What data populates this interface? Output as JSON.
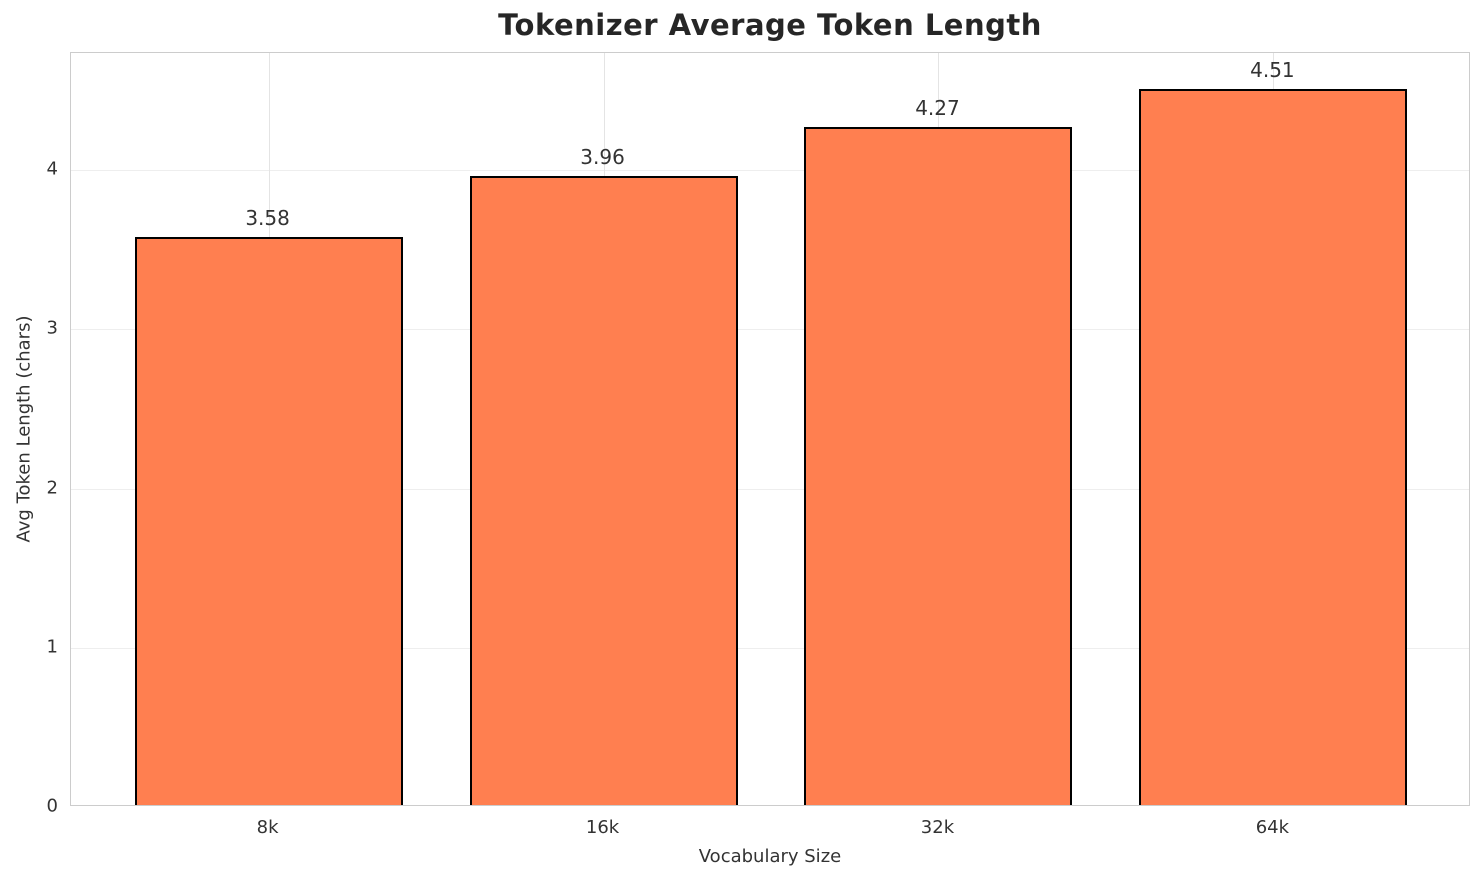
{
  "chart_data": {
    "type": "bar",
    "title": "Tokenizer Average Token Length",
    "xlabel": "Vocabulary Size",
    "ylabel": "Avg Token Length (chars)",
    "categories": [
      "8k",
      "16k",
      "32k",
      "64k"
    ],
    "values": [
      3.58,
      3.96,
      4.27,
      4.51
    ],
    "value_labels": [
      "3.58",
      "3.96",
      "4.27",
      "4.51"
    ],
    "yticks": [
      0,
      1,
      2,
      3,
      4
    ],
    "ylim": [
      0,
      4.7355
    ],
    "bar_color": "#FF7F50",
    "bar_edge_color": "#000000",
    "grid": true,
    "legend": "none"
  }
}
